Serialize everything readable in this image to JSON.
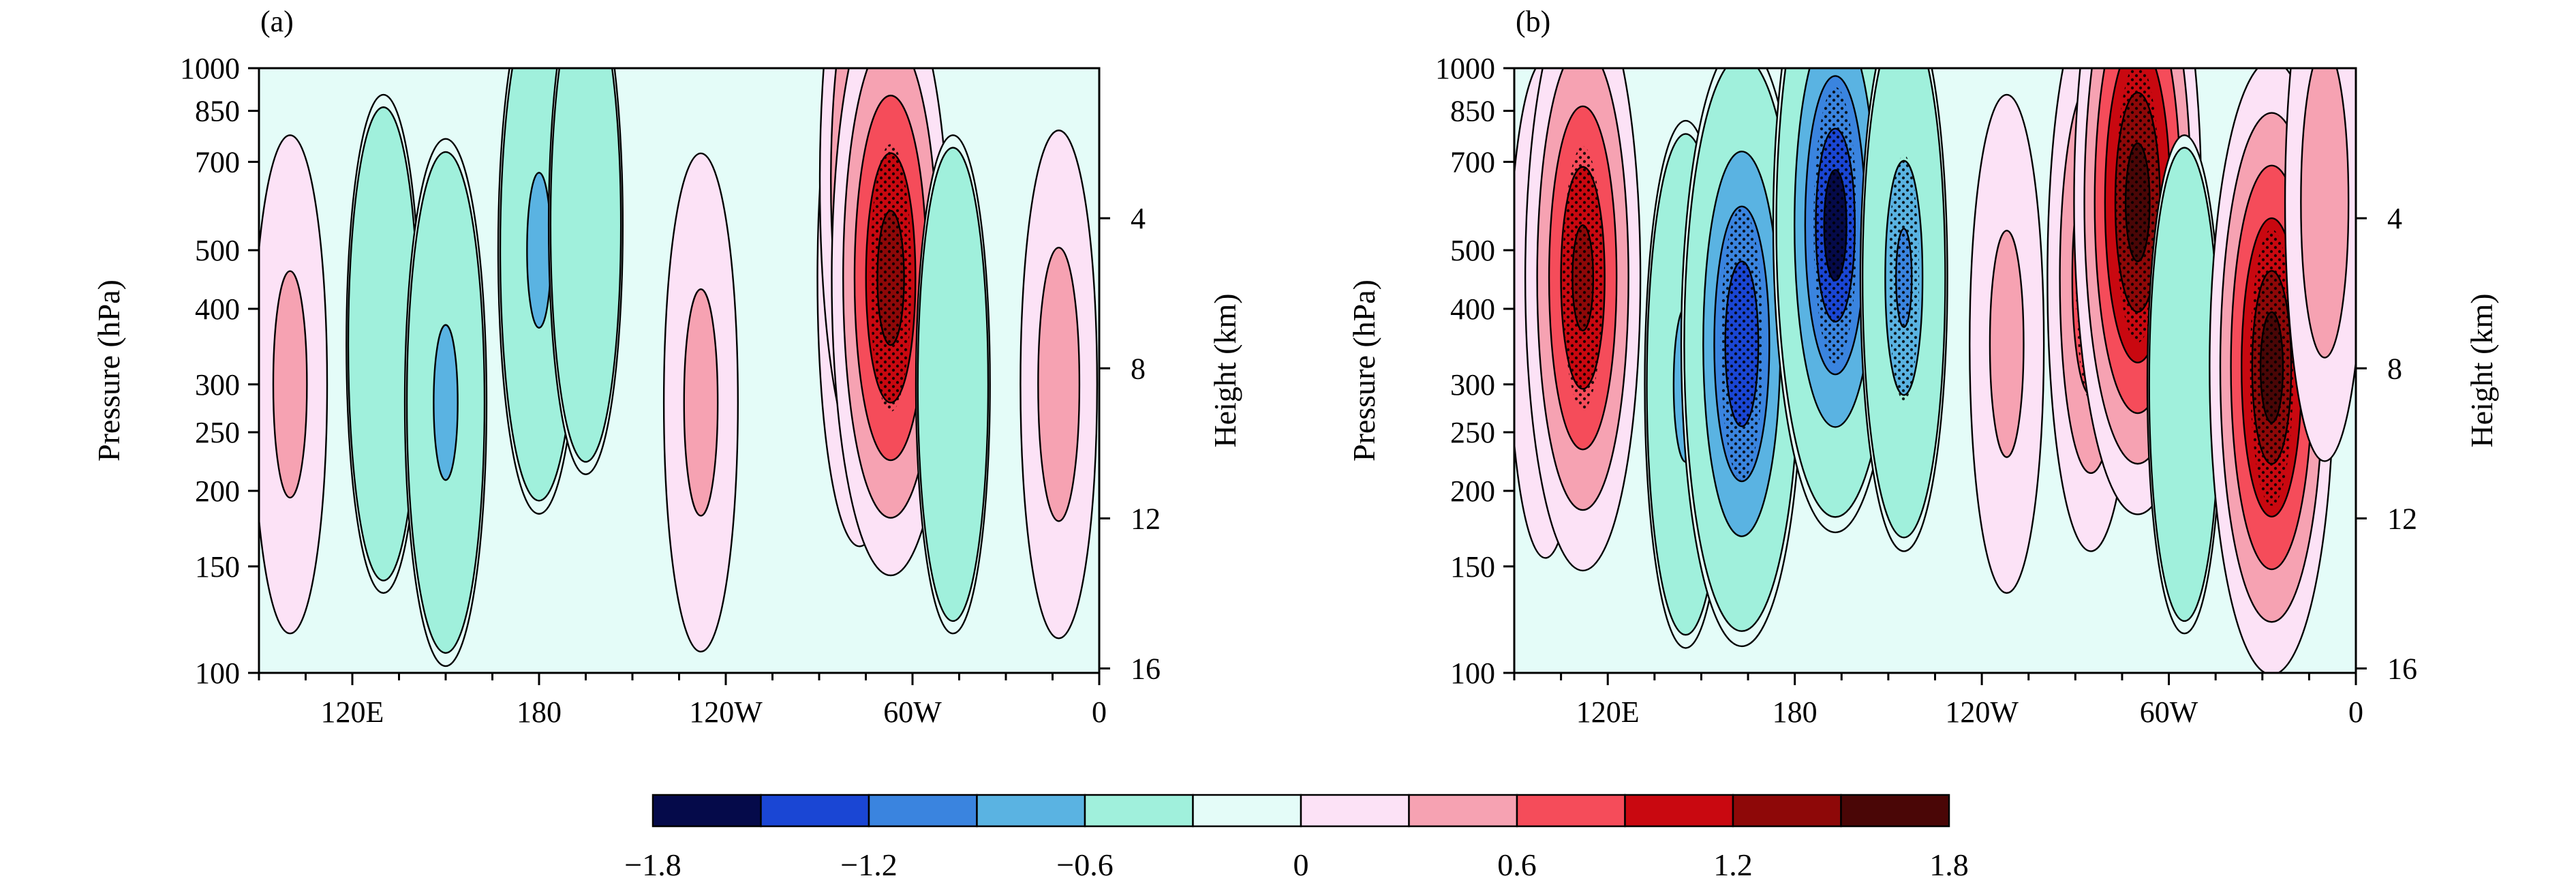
{
  "chart_data": [
    {
      "panel": "(a)",
      "type": "heatmap",
      "title": "",
      "xlabel": "",
      "ylabel": "Pressure (hPa)",
      "y2label": "Height (km)",
      "x_range": [
        90,
        360
      ],
      "x_ticks": [
        {
          "value": 120,
          "label": "120E"
        },
        {
          "value": 180,
          "label": "180"
        },
        {
          "value": 240,
          "label": "120W"
        },
        {
          "value": 300,
          "label": "60W"
        },
        {
          "value": 360,
          "label": "0"
        }
      ],
      "pressure_ticks": [
        100,
        150,
        200,
        250,
        300,
        400,
        500,
        700,
        850,
        1000
      ],
      "height_ticks_km": [
        4,
        8,
        12,
        16
      ],
      "anomaly_centers": [
        {
          "lon": 100,
          "p": 300,
          "value": 0.4
        },
        {
          "lon": 130,
          "p": 350,
          "value": -0.4
        },
        {
          "lon": 150,
          "p": 280,
          "value": -0.7
        },
        {
          "lon": 180,
          "p": 500,
          "value": -0.7
        },
        {
          "lon": 195,
          "p": 550,
          "value": -0.4
        },
        {
          "lon": 232,
          "p": 280,
          "value": 0.4
        },
        {
          "lon": 283,
          "p": 450,
          "value": 0.8
        },
        {
          "lon": 285,
          "p": 650,
          "value": 1.1
        },
        {
          "lon": 293,
          "p": 450,
          "value": 1.4
        },
        {
          "lon": 313,
          "p": 300,
          "value": -0.4
        },
        {
          "lon": 347,
          "p": 300,
          "value": 0.5
        }
      ]
    },
    {
      "panel": "(b)",
      "type": "heatmap",
      "title": "",
      "xlabel": "",
      "ylabel": "Pressure (hPa)",
      "y2label": "Height (km)",
      "x_range": [
        90,
        360
      ],
      "x_ticks": [
        {
          "value": 120,
          "label": "120E"
        },
        {
          "value": 180,
          "label": "180"
        },
        {
          "value": 240,
          "label": "120W"
        },
        {
          "value": 300,
          "label": "60W"
        },
        {
          "value": 360,
          "label": "0"
        }
      ],
      "pressure_ticks": [
        100,
        150,
        200,
        250,
        300,
        400,
        500,
        700,
        850,
        1000
      ],
      "height_ticks_km": [
        4,
        8,
        12,
        16
      ],
      "anomaly_centers": [
        {
          "lon": 100,
          "p": 400,
          "value": 0.4
        },
        {
          "lon": 112,
          "p": 450,
          "value": 1.3
        },
        {
          "lon": 145,
          "p": 300,
          "value": -0.7
        },
        {
          "lon": 163,
          "p": 350,
          "value": -1.5
        },
        {
          "lon": 193,
          "p": 550,
          "value": -1.6
        },
        {
          "lon": 215,
          "p": 450,
          "value": -0.9
        },
        {
          "lon": 248,
          "p": 350,
          "value": 0.4
        },
        {
          "lon": 275,
          "p": 450,
          "value": 0.9
        },
        {
          "lon": 290,
          "p": 600,
          "value": 1.7
        },
        {
          "lon": 305,
          "p": 300,
          "value": -0.4
        },
        {
          "lon": 333,
          "p": 320,
          "value": 1.6
        },
        {
          "lon": 350,
          "p": 600,
          "value": 0.6
        }
      ]
    }
  ],
  "colorbar": {
    "levels": [
      -1.8,
      -1.5,
      -1.2,
      -0.9,
      -0.6,
      -0.3,
      0,
      0.3,
      0.6,
      0.9,
      1.2,
      1.5,
      1.8
    ],
    "colors": [
      "#050a4a",
      "#1a46d4",
      "#3a84df",
      "#5ab3e2",
      "#a0f0dc",
      "#e4fcf8",
      "#fce2f6",
      "#f6a2b2",
      "#f54c5a",
      "#c90810",
      "#8e0808",
      "#4a0606"
    ],
    "tick_labels": [
      "−1.8",
      "−1.2",
      "−0.6",
      "0",
      "0.6",
      "1.2",
      "1.8"
    ]
  }
}
